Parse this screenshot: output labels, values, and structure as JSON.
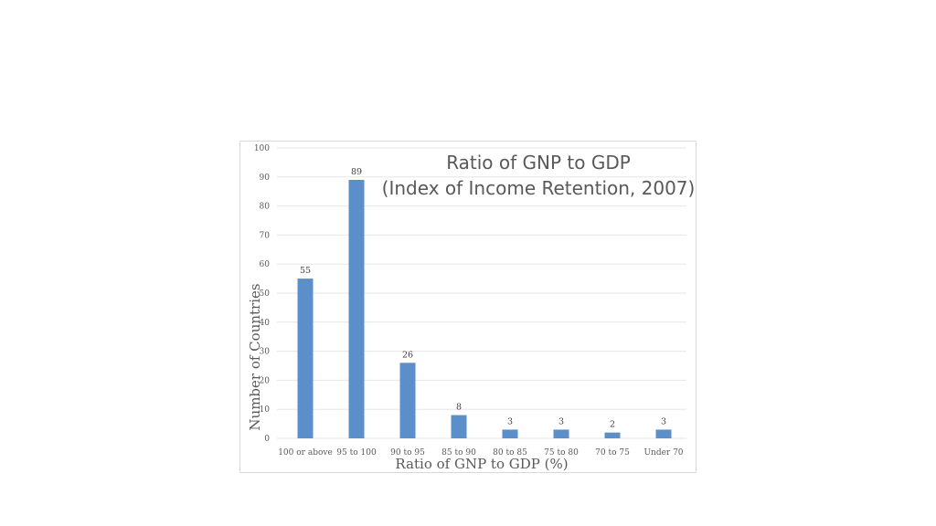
{
  "chart_data": {
    "type": "bar",
    "title": "Ratio of GNP to GDP",
    "subtitle": "(Index of Income Retention, 2007)",
    "xlabel": "Ratio of GNP to GDP (%)",
    "ylabel": "Number of Countries",
    "categories": [
      "100 or above",
      "95 to 100",
      "90 to 95",
      "85 to 90",
      "80 to 85",
      "75 to 80",
      "70 to 75",
      "Under 70"
    ],
    "values": [
      55,
      89,
      26,
      8,
      3,
      3,
      2,
      3
    ],
    "ylim": [
      0,
      100
    ],
    "yticks": [
      0,
      10,
      20,
      30,
      40,
      50,
      60,
      70,
      80,
      90,
      100
    ],
    "grid": true,
    "data_labels": true,
    "bar_color": "#5b8fc9",
    "grid_color": "#e6e6e6"
  }
}
